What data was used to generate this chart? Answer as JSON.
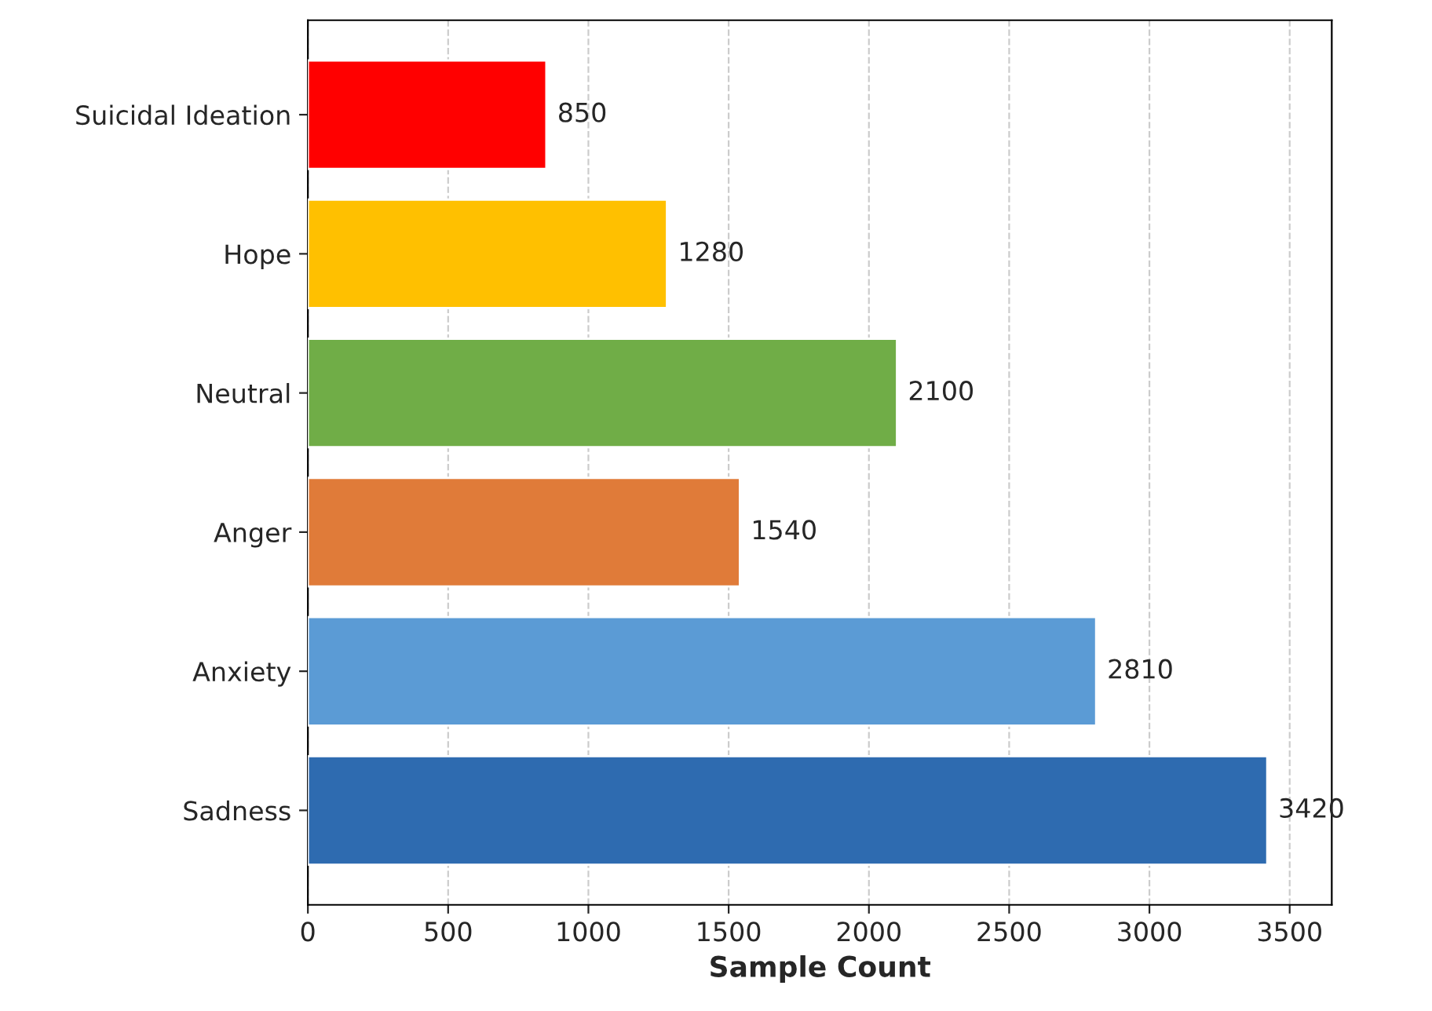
{
  "chart_data": {
    "type": "bar",
    "orientation": "horizontal",
    "xlabel": "Sample Count",
    "categories": [
      "Suicidal Ideation",
      "Hope",
      "Neutral",
      "Anger",
      "Anxiety",
      "Sadness"
    ],
    "values": [
      850,
      1280,
      2100,
      1540,
      2810,
      3420
    ],
    "colors": [
      "#ff0000",
      "#ffc000",
      "#70ad47",
      "#e07b39",
      "#5b9bd5",
      "#2e6bb0"
    ],
    "xlim": [
      0,
      3650
    ],
    "xticks": [
      0,
      500,
      1000,
      1500,
      2000,
      2500,
      3000,
      3500
    ],
    "grid": "x",
    "data_labels": true
  }
}
